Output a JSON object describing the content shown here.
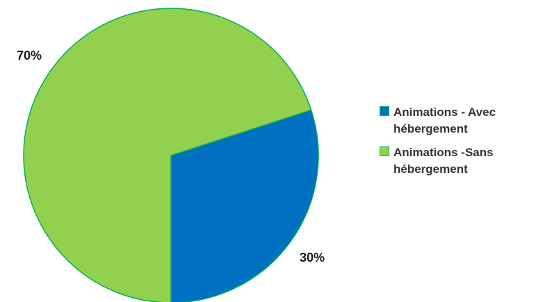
{
  "chart_data": {
    "type": "pie",
    "title": "",
    "slices": [
      {
        "name": "Animations - Avec hébergement",
        "value": 30,
        "label": "30%",
        "color": "#0070c0"
      },
      {
        "name": "Animations -Sans hébergement",
        "value": 70,
        "label": "70%",
        "color": "#92d050"
      }
    ],
    "legend_position": "right",
    "slice_border_color": "#00b050"
  }
}
